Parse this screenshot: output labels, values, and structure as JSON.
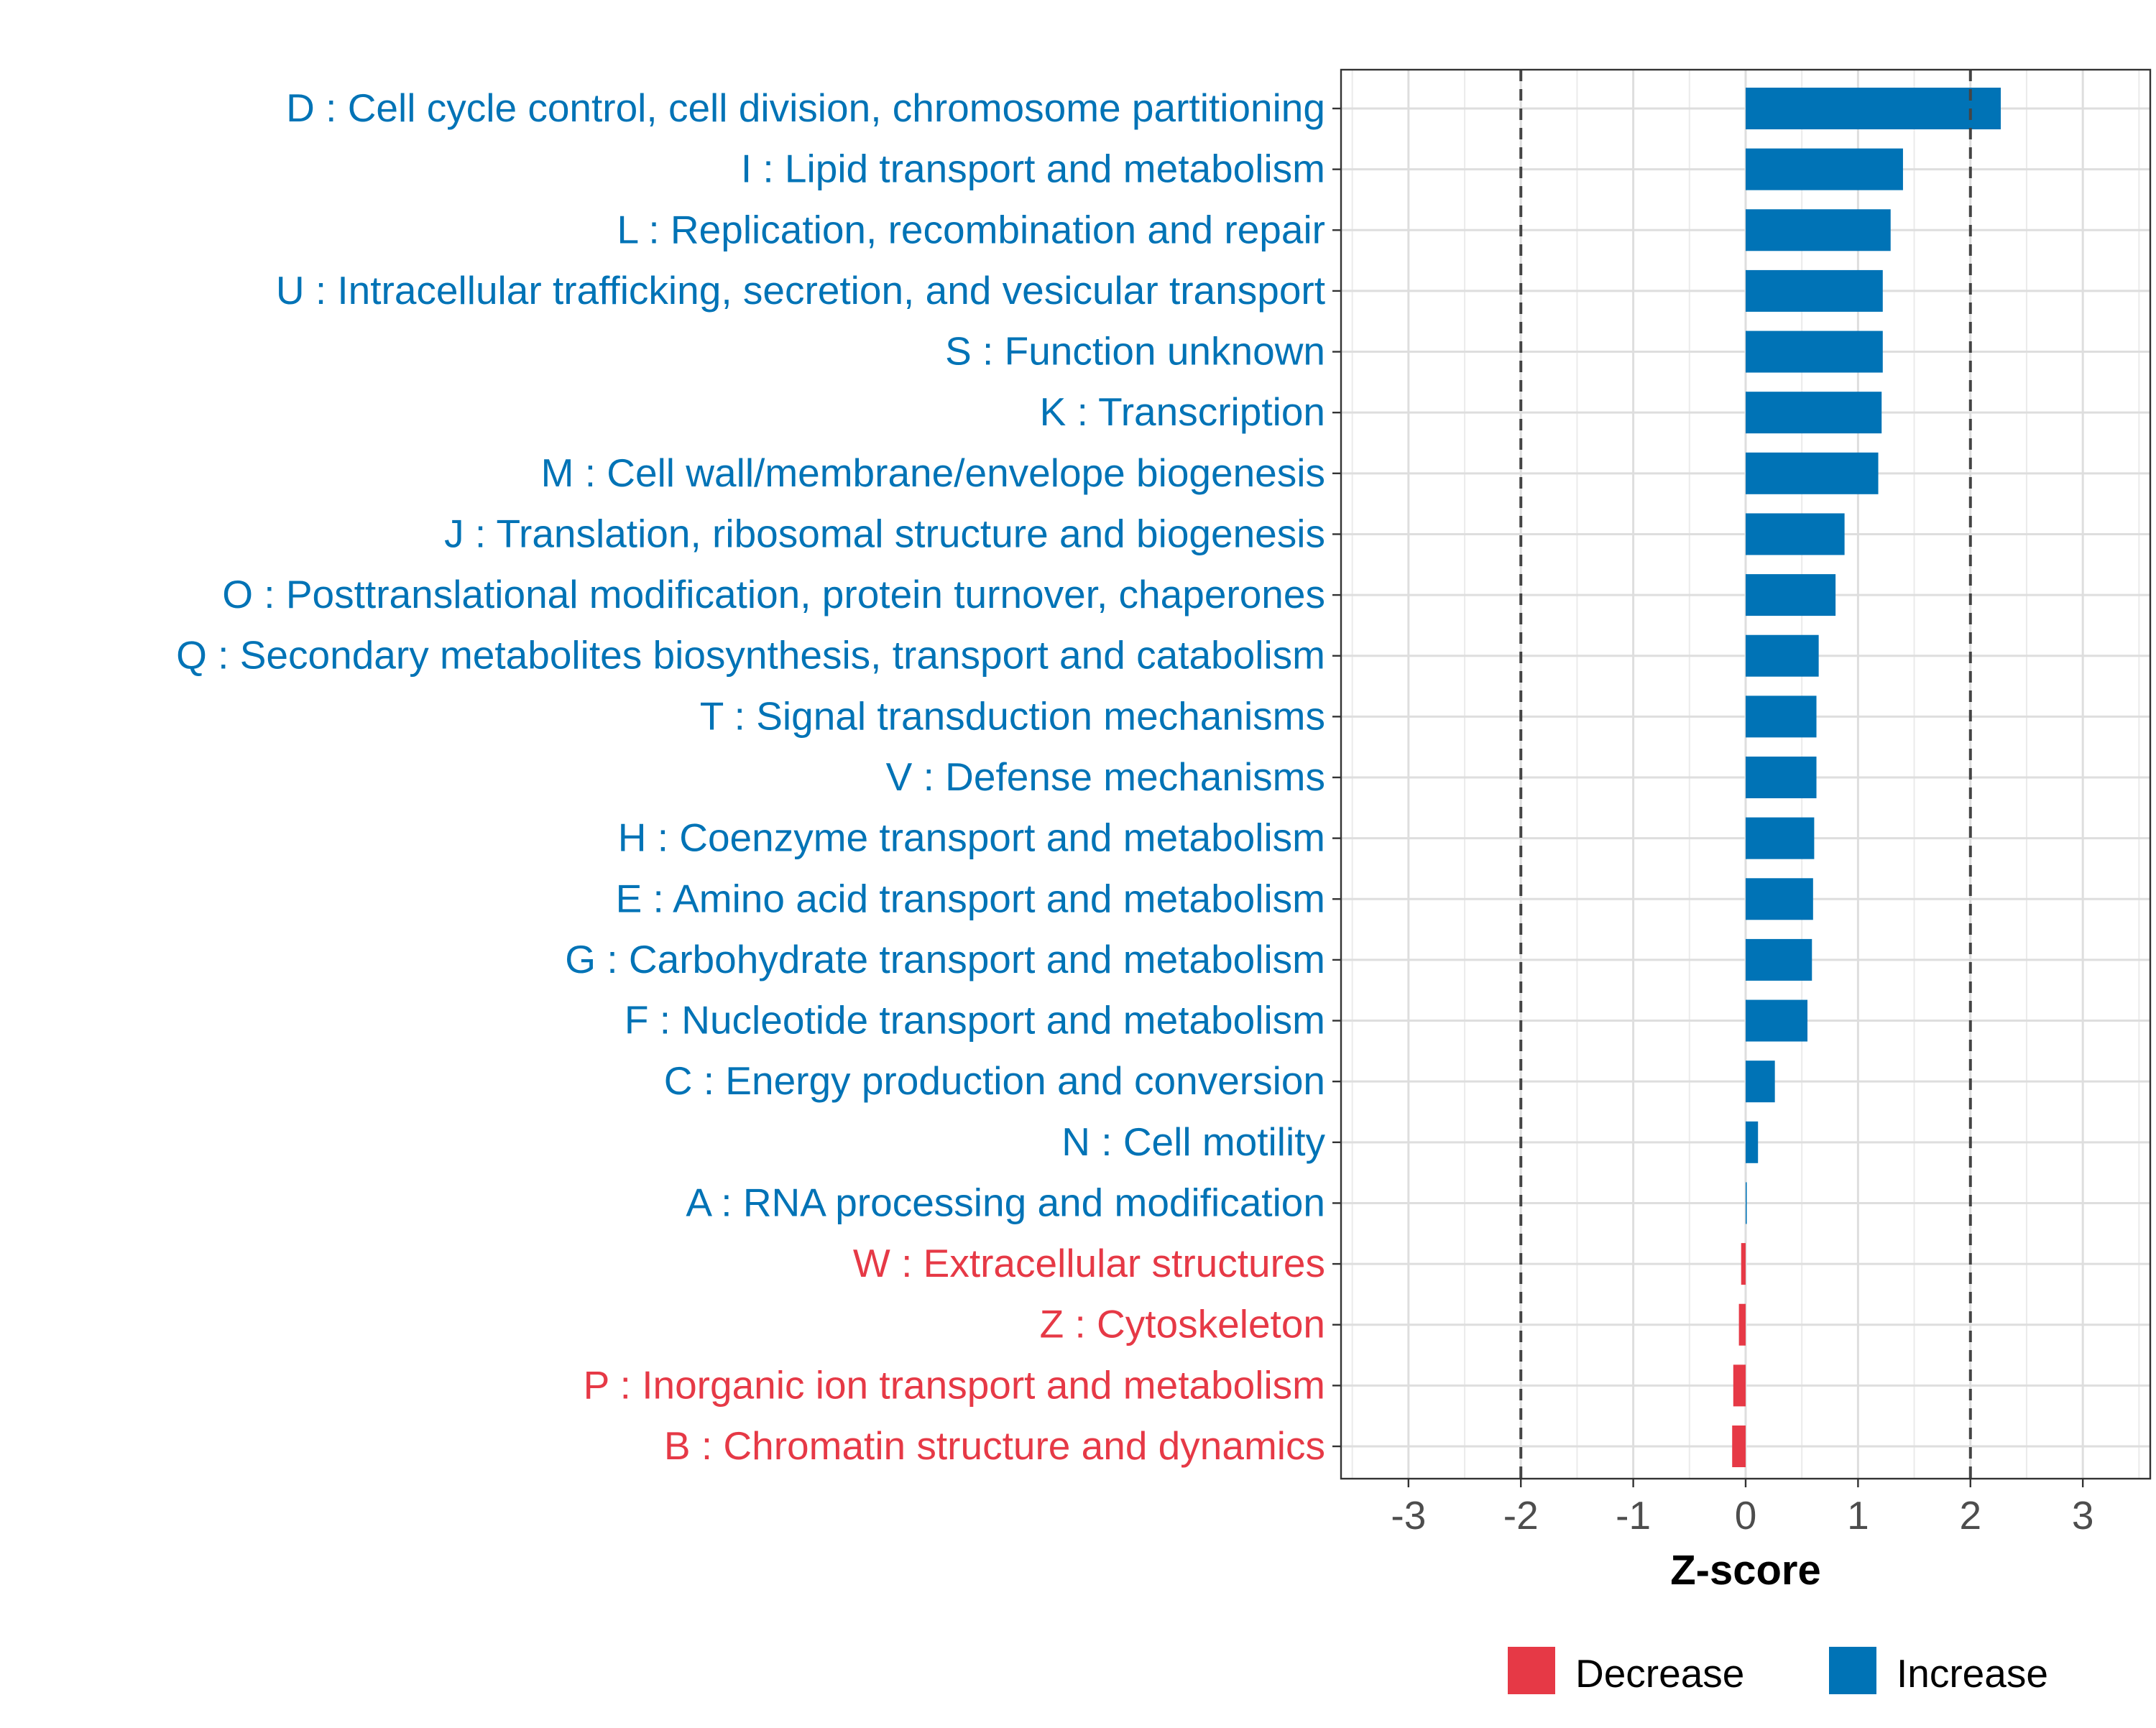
{
  "chart_data": {
    "type": "bar",
    "orientation": "horizontal",
    "xlabel": "Z-score",
    "xlim": [
      -3.6,
      3.6
    ],
    "xticks": [
      -3,
      -2,
      -1,
      0,
      1,
      2,
      3
    ],
    "reference_lines": [
      -2,
      2
    ],
    "grid": true,
    "legend_position": "bottom",
    "colors": {
      "Increase": "#0073B6",
      "Decrease": "#E63946"
    },
    "legend": [
      {
        "label": "Decrease",
        "color": "#E63946"
      },
      {
        "label": "Increase",
        "color": "#0073B6"
      }
    ],
    "categories": [
      "D : Cell cycle control, cell division, chromosome partitioning",
      "I : Lipid transport and metabolism",
      "L : Replication, recombination and repair",
      "U : Intracellular trafficking, secretion, and vesicular transport",
      "S : Function unknown",
      "K : Transcription",
      "M : Cell wall/membrane/envelope biogenesis",
      "J : Translation, ribosomal structure and biogenesis",
      "O : Posttranslational modification, protein turnover, chaperones",
      "Q : Secondary metabolites biosynthesis, transport and catabolism",
      "T : Signal transduction mechanisms",
      "V : Defense mechanisms",
      "H : Coenzyme transport and metabolism",
      "E : Amino acid transport and metabolism",
      "G : Carbohydrate transport and metabolism",
      "F : Nucleotide transport and metabolism",
      "C : Energy production and conversion",
      "N : Cell motility",
      "A : RNA processing and modification",
      "W : Extracellular structures",
      "Z : Cytoskeleton",
      "P : Inorganic ion transport and metabolism",
      "B : Chromatin structure and dynamics"
    ],
    "values": [
      2.27,
      1.4,
      1.29,
      1.22,
      1.22,
      1.21,
      1.18,
      0.88,
      0.8,
      0.65,
      0.63,
      0.63,
      0.61,
      0.6,
      0.59,
      0.55,
      0.26,
      0.11,
      0.01,
      -0.04,
      -0.06,
      -0.11,
      -0.12
    ],
    "direction": [
      "Increase",
      "Increase",
      "Increase",
      "Increase",
      "Increase",
      "Increase",
      "Increase",
      "Increase",
      "Increase",
      "Increase",
      "Increase",
      "Increase",
      "Increase",
      "Increase",
      "Increase",
      "Increase",
      "Increase",
      "Increase",
      "Increase",
      "Decrease",
      "Decrease",
      "Decrease",
      "Decrease"
    ]
  }
}
